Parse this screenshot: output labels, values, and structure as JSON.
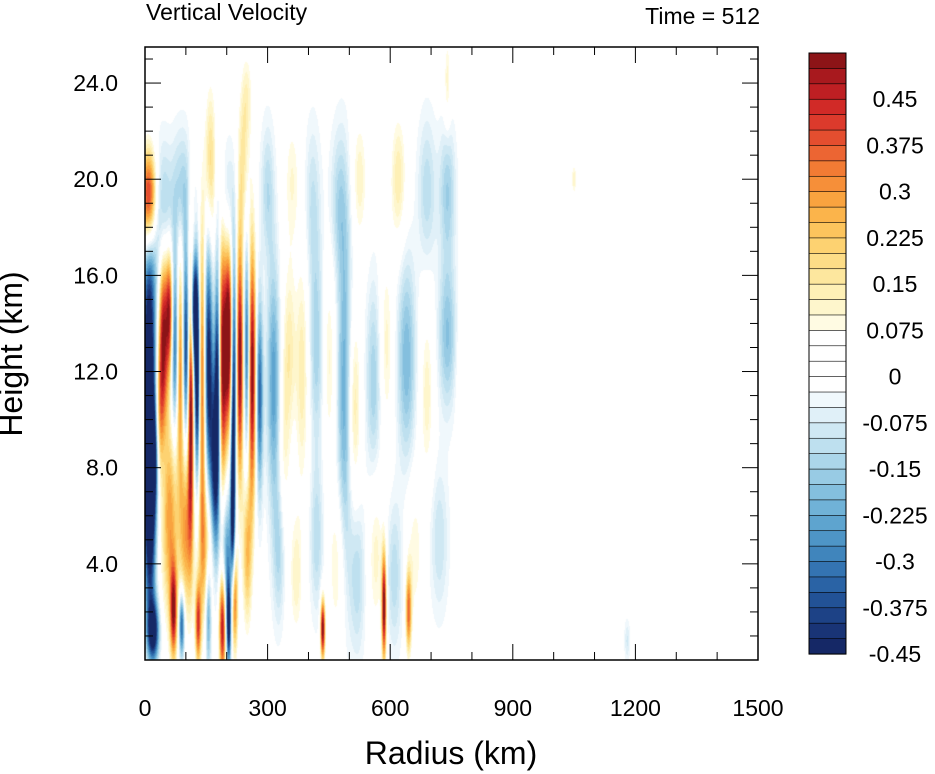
{
  "chart_data": {
    "type": "heatmap",
    "title_left": "Vertical Velocity",
    "title_right": "Time = 512",
    "xlabel": "Radius (km)",
    "ylabel": "Height (km)",
    "xlim": [
      0,
      1500
    ],
    "ylim": [
      0,
      25.5
    ],
    "x_ticks": [
      0,
      300,
      600,
      900,
      1200,
      1500
    ],
    "x_tick_labels": [
      "0",
      "300",
      "600",
      "900",
      "1200",
      "1500"
    ],
    "y_ticks": [
      4,
      8,
      12,
      16,
      20,
      24
    ],
    "y_tick_labels": [
      "4.0",
      "8.0",
      "12.0",
      "16.0",
      "20.0",
      "24.0"
    ],
    "colorbar": {
      "levels": [
        0.525,
        0.5,
        0.475,
        0.45,
        0.425,
        0.4,
        0.375,
        0.35,
        0.325,
        0.3,
        0.275,
        0.25,
        0.225,
        0.2,
        0.175,
        0.15,
        0.125,
        0.1,
        0.075,
        0.05,
        0.025,
        0,
        -0.025,
        -0.05,
        -0.075,
        -0.1,
        -0.125,
        -0.15,
        -0.175,
        -0.2,
        -0.225,
        -0.25,
        -0.275,
        -0.3,
        -0.325,
        -0.35,
        -0.375,
        -0.4,
        -0.425,
        -0.45,
        -0.475,
        -0.5
      ],
      "colors": [
        "#8c1417",
        "#a8191e",
        "#be1f23",
        "#d12a27",
        "#dc3a2c",
        "#e44e2f",
        "#ec6533",
        "#f27b34",
        "#f68f39",
        "#f9a33f",
        "#fbb44b",
        "#fcc45d",
        "#fdd271",
        "#fddd87",
        "#fde79e",
        "#fef0b6",
        "#fef6cc",
        "#fffbe3",
        "#ffffff",
        "#ffffff",
        "#ffffff",
        "#ffffff",
        "#f0f8fc",
        "#e0f0f8",
        "#cfe8f3",
        "#bee0ef",
        "#abd6ea",
        "#98cbe4",
        "#84bfde",
        "#70b2d7",
        "#5ea4cf",
        "#4e95c6",
        "#4085bc",
        "#3474b2",
        "#2a63a5",
        "#225296",
        "#1d4286",
        "#193476",
        "#152866"
      ],
      "tick_labels": [
        "0.45",
        "0.375",
        "0.3",
        "0.225",
        "0.15",
        "0.075",
        "0",
        "-0.075",
        "-0.15",
        "-0.225",
        "-0.3",
        "-0.375",
        "-0.45"
      ],
      "tick_values": [
        0.45,
        0.375,
        0.3,
        0.225,
        0.15,
        0.075,
        0,
        -0.075,
        -0.15,
        -0.225,
        -0.3,
        -0.375,
        -0.45
      ]
    },
    "features": [
      {
        "r": 10,
        "z": 19.2,
        "dr": 14,
        "dz": 1.5,
        "w": 0.55
      },
      {
        "r": 10,
        "z": 12.5,
        "dr": 12,
        "dz": 3.8,
        "w": -0.55
      },
      {
        "r": 15,
        "z": 8.3,
        "dr": 16,
        "dz": 1.8,
        "w": -0.55
      },
      {
        "r": 12,
        "z": 4.5,
        "dr": 10,
        "dz": 2.2,
        "w": -0.4
      },
      {
        "r": 20,
        "z": 1.2,
        "dr": 10,
        "dz": 0.9,
        "w": -0.5
      },
      {
        "r": 45,
        "z": 13.5,
        "dr": 8,
        "dz": 2.6,
        "w": 0.5
      },
      {
        "r": 35,
        "z": 9.5,
        "dr": 7,
        "dz": 2.2,
        "w": 0.35
      },
      {
        "r": 60,
        "z": 14.5,
        "dr": 6,
        "dz": 1.8,
        "w": 0.45
      },
      {
        "r": 75,
        "z": 13.0,
        "dr": 7,
        "dz": 2.6,
        "w": -0.45
      },
      {
        "r": 85,
        "z": 12.5,
        "dr": 7,
        "dz": 3.0,
        "w": 0.45
      },
      {
        "r": 100,
        "z": 13.0,
        "dr": 6,
        "dz": 2.8,
        "w": -0.45
      },
      {
        "r": 112,
        "z": 11.0,
        "dr": 5,
        "dz": 4.0,
        "w": 0.55
      },
      {
        "r": 120,
        "z": 14.5,
        "dr": 6,
        "dz": 1.6,
        "w": -0.5
      },
      {
        "r": 128,
        "z": 11.8,
        "dr": 5,
        "dz": 3.0,
        "w": -0.55
      },
      {
        "r": 140,
        "z": 11.5,
        "dr": 6,
        "dz": 4.5,
        "w": 0.4
      },
      {
        "r": 155,
        "z": 12.5,
        "dr": 7,
        "dz": 3.5,
        "w": -0.45
      },
      {
        "r": 170,
        "z": 8.0,
        "dr": 8,
        "dz": 3.0,
        "w": -0.45
      },
      {
        "r": 178,
        "z": 12.0,
        "dr": 5,
        "dz": 3.5,
        "w": -0.5
      },
      {
        "r": 190,
        "z": 12.5,
        "dr": 8,
        "dz": 3.8,
        "w": 0.55
      },
      {
        "r": 205,
        "z": 13.5,
        "dr": 6,
        "dz": 2.6,
        "w": 0.55
      },
      {
        "r": 218,
        "z": 12.5,
        "dr": 5,
        "dz": 3.2,
        "w": -0.4
      },
      {
        "r": 232,
        "z": 12.5,
        "dr": 6,
        "dz": 3.5,
        "w": 0.55
      },
      {
        "r": 250,
        "z": 13.0,
        "dr": 5,
        "dz": 3.0,
        "w": -0.4
      },
      {
        "r": 262,
        "z": 12.0,
        "dr": 7,
        "dz": 3.8,
        "w": 0.55
      },
      {
        "r": 280,
        "z": 11.0,
        "dr": 6,
        "dz": 2.8,
        "w": -0.35
      },
      {
        "r": 60,
        "z": 6.0,
        "dr": 14,
        "dz": 3.0,
        "w": 0.3
      },
      {
        "r": 100,
        "z": 5.5,
        "dr": 12,
        "dz": 2.6,
        "w": 0.3
      },
      {
        "r": 150,
        "z": 4.5,
        "dr": 14,
        "dz": 2.2,
        "w": 0.25
      },
      {
        "r": 200,
        "z": 4.0,
        "dr": 10,
        "dz": 2.2,
        "w": -0.3
      },
      {
        "r": 215,
        "z": 6.5,
        "dr": 4,
        "dz": 3.0,
        "w": -0.5
      },
      {
        "r": 218,
        "z": 2.5,
        "dr": 6,
        "dz": 1.6,
        "w": 0.45
      },
      {
        "r": 250,
        "z": 4.5,
        "dr": 8,
        "dz": 2.2,
        "w": 0.25
      },
      {
        "r": 70,
        "z": 2.0,
        "dr": 6,
        "dz": 1.4,
        "w": 0.45
      },
      {
        "r": 90,
        "z": 1.5,
        "dr": 5,
        "dz": 1.0,
        "w": -0.4
      },
      {
        "r": 130,
        "z": 1.5,
        "dr": 5,
        "dz": 1.2,
        "w": 0.4
      },
      {
        "r": 155,
        "z": 2.0,
        "dr": 5,
        "dz": 1.6,
        "w": -0.3
      },
      {
        "r": 190,
        "z": 1.5,
        "dr": 6,
        "dz": 1.6,
        "w": 0.55
      },
      {
        "r": 205,
        "z": 1.5,
        "dr": 4,
        "dz": 1.2,
        "w": -0.45
      },
      {
        "r": 315,
        "z": 11.5,
        "dr": 12,
        "dz": 3.5,
        "w": -0.25
      },
      {
        "r": 340,
        "z": 9.0,
        "dr": 10,
        "dz": 4.0,
        "w": 0.12
      },
      {
        "r": 355,
        "z": 13.0,
        "dr": 10,
        "dz": 2.6,
        "w": 0.12
      },
      {
        "r": 385,
        "z": 12.0,
        "dr": 12,
        "dz": 3.5,
        "w": 0.15
      },
      {
        "r": 420,
        "z": 13.0,
        "dr": 14,
        "dz": 3.0,
        "w": -0.15
      },
      {
        "r": 450,
        "z": 12.5,
        "dr": 12,
        "dz": 3.0,
        "w": 0.12
      },
      {
        "r": 490,
        "z": 11.0,
        "dr": 14,
        "dz": 5.0,
        "w": -0.25
      },
      {
        "r": 510,
        "z": 10.5,
        "dr": 12,
        "dz": 3.0,
        "w": 0.2
      },
      {
        "r": 560,
        "z": 11.5,
        "dr": 14,
        "dz": 3.0,
        "w": -0.15
      },
      {
        "r": 590,
        "z": 13.0,
        "dr": 12,
        "dz": 2.8,
        "w": 0.12
      },
      {
        "r": 640,
        "z": 12.5,
        "dr": 16,
        "dz": 3.0,
        "w": -0.2
      },
      {
        "r": 690,
        "z": 11.0,
        "dr": 12,
        "dz": 2.6,
        "w": 0.12
      },
      {
        "r": 740,
        "z": 13.5,
        "dr": 16,
        "dz": 2.2,
        "w": -0.18
      },
      {
        "r": 780,
        "z": 12.0,
        "dr": 12,
        "dz": 2.0,
        "w": 0.08
      },
      {
        "r": 330,
        "z": 4.5,
        "dr": 12,
        "dz": 2.2,
        "w": -0.15
      },
      {
        "r": 370,
        "z": 3.5,
        "dr": 12,
        "dz": 2.0,
        "w": 0.12
      },
      {
        "r": 420,
        "z": 5.0,
        "dr": 12,
        "dz": 2.2,
        "w": -0.12
      },
      {
        "r": 470,
        "z": 4.0,
        "dr": 14,
        "dz": 2.4,
        "w": 0.12
      },
      {
        "r": 520,
        "z": 3.5,
        "dr": 14,
        "dz": 2.4,
        "w": -0.12
      },
      {
        "r": 565,
        "z": 4.5,
        "dr": 14,
        "dz": 2.4,
        "w": 0.12
      },
      {
        "r": 610,
        "z": 3.5,
        "dr": 14,
        "dz": 2.2,
        "w": -0.12
      },
      {
        "r": 660,
        "z": 4.5,
        "dr": 14,
        "dz": 2.2,
        "w": 0.1
      },
      {
        "r": 720,
        "z": 5.0,
        "dr": 16,
        "dz": 2.2,
        "w": -0.1
      },
      {
        "r": 435,
        "z": 1.3,
        "dr": 4,
        "dz": 0.9,
        "w": 0.55
      },
      {
        "r": 585,
        "z": 2.2,
        "dr": 4,
        "dz": 1.6,
        "w": 0.55
      },
      {
        "r": 645,
        "z": 2.0,
        "dr": 5,
        "dz": 1.2,
        "w": 0.35
      },
      {
        "r": 160,
        "z": 20.5,
        "dr": 10,
        "dz": 2.4,
        "w": 0.2
      },
      {
        "r": 240,
        "z": 20.5,
        "dr": 10,
        "dz": 2.2,
        "w": 0.15
      },
      {
        "r": 200,
        "z": 19.0,
        "dr": 14,
        "dz": 1.8,
        "w": -0.12
      },
      {
        "r": 300,
        "z": 19.5,
        "dr": 12,
        "dz": 2.0,
        "w": -0.12
      },
      {
        "r": 360,
        "z": 20.0,
        "dr": 14,
        "dz": 2.0,
        "w": 0.1
      },
      {
        "r": 410,
        "z": 19.0,
        "dr": 14,
        "dz": 2.4,
        "w": -0.1
      },
      {
        "r": 475,
        "z": 19.0,
        "dr": 16,
        "dz": 2.2,
        "w": -0.12
      },
      {
        "r": 525,
        "z": 20.0,
        "dr": 14,
        "dz": 2.0,
        "w": 0.12
      },
      {
        "r": 620,
        "z": 20.0,
        "dr": 14,
        "dz": 2.0,
        "w": 0.15
      },
      {
        "r": 690,
        "z": 19.5,
        "dr": 16,
        "dz": 2.2,
        "w": -0.12
      },
      {
        "r": 740,
        "z": 19.5,
        "dr": 14,
        "dz": 2.0,
        "w": -0.15
      },
      {
        "r": 40,
        "z": 18.5,
        "dr": 18,
        "dz": 2.0,
        "w": -0.2
      },
      {
        "r": 90,
        "z": 19.5,
        "dr": 16,
        "dz": 1.8,
        "w": -0.15
      },
      {
        "r": 250,
        "z": 23.5,
        "dr": 10,
        "dz": 1.4,
        "w": 0.1
      },
      {
        "r": 740,
        "z": 24.0,
        "dr": 6,
        "dz": 1.4,
        "w": 0.12
      },
      {
        "r": 1050,
        "z": 20.0,
        "dr": 5,
        "dz": 0.5,
        "w": 0.12
      },
      {
        "r": 1180,
        "z": 0.8,
        "dr": 5,
        "dz": 0.6,
        "w": -0.08
      }
    ]
  }
}
